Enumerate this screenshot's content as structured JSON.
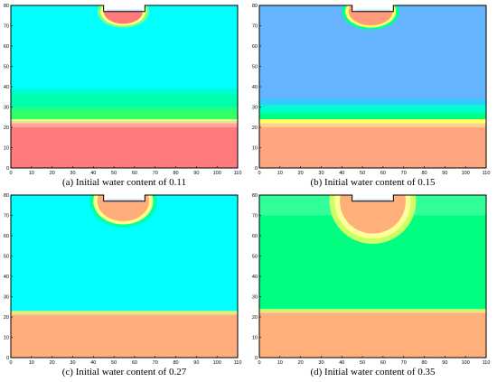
{
  "figure": {
    "panels": [
      {
        "caption": "(a) Initial water content of 0.11",
        "colors": {
          "background": "#00ffff",
          "bands": [
            {
              "from": 0,
              "to": 20,
              "color": "#ff7b7b"
            },
            {
              "from": 20,
              "to": 22,
              "color": "#ffa59a"
            },
            {
              "from": 22,
              "to": 23,
              "color": "#ffd6a0"
            },
            {
              "from": 23,
              "to": 24,
              "color": "#e8ff7a"
            },
            {
              "from": 24,
              "to": 28,
              "color": "#33ff66"
            },
            {
              "from": 28,
              "to": 30,
              "color": "#22ff88"
            },
            {
              "from": 30,
              "to": 36,
              "color": "#00ffaa"
            },
            {
              "from": 36,
              "to": 39,
              "color": "#00ffd0"
            }
          ],
          "plume": [
            "#80ff80",
            "#ffff80",
            "#ff7b7b"
          ]
        }
      },
      {
        "caption": "(b) Initial water content of 0.15",
        "colors": {
          "background": "#66b3ff",
          "bands": [
            {
              "from": 0,
              "to": 20,
              "color": "#ffa57f"
            },
            {
              "from": 20,
              "to": 22,
              "color": "#ffd08a"
            },
            {
              "from": 22,
              "to": 24,
              "color": "#ffff66"
            },
            {
              "from": 24,
              "to": 27,
              "color": "#00ff80"
            },
            {
              "from": 27,
              "to": 31,
              "color": "#00ffcc"
            },
            {
              "from": 31,
              "to": 34,
              "color": "#33ccff"
            }
          ],
          "plume": [
            "#00ff99",
            "#ffff66",
            "#ff9a7a"
          ]
        }
      },
      {
        "caption": "(c) Initial water content of 0.27",
        "colors": {
          "background": "#00ffff",
          "bands": [
            {
              "from": 0,
              "to": 21,
              "color": "#ffad7a"
            },
            {
              "from": 21,
              "to": 22,
              "color": "#ffd68a"
            },
            {
              "from": 22,
              "to": 23,
              "color": "#ccff66"
            }
          ],
          "plume": [
            "#00ffaa",
            "#ffff80",
            "#ffad7a"
          ]
        }
      },
      {
        "caption": "(d) Initial water content of 0.35",
        "colors": {
          "background": "#00ff80",
          "bands": [
            {
              "from": 0,
              "to": 22,
              "color": "#ffb07a"
            },
            {
              "from": 22,
              "to": 23,
              "color": "#ffe08a"
            },
            {
              "from": 23,
              "to": 24,
              "color": "#bfff66"
            },
            {
              "from": 70,
              "to": 80,
              "color": "#33ff99"
            }
          ],
          "plume": [
            "#ccff66",
            "#ffff99",
            "#ffb07a"
          ]
        }
      }
    ]
  },
  "chart_data": [
    {
      "type": "heatmap",
      "title": "(a) Initial water content of 0.11",
      "xlim": [
        0,
        110
      ],
      "ylim": [
        0,
        80
      ],
      "xticks": [
        0,
        10,
        20,
        30,
        40,
        50,
        60,
        70,
        80,
        90,
        100,
        110
      ],
      "yticks": [
        0,
        10,
        20,
        30,
        40,
        50,
        60,
        70,
        80
      ],
      "grid": false,
      "notch": {
        "x": [
          45,
          65
        ],
        "y": [
          77,
          80
        ]
      },
      "plume": {
        "x": [
          42,
          67
        ],
        "y_bottom": 69
      }
    },
    {
      "type": "heatmap",
      "title": "(b) Initial water content of 0.15",
      "xlim": [
        0,
        110
      ],
      "ylim": [
        0,
        80
      ],
      "xticks": [
        0,
        10,
        20,
        30,
        40,
        50,
        60,
        70,
        80,
        90,
        100,
        110
      ],
      "yticks": [
        0,
        10,
        20,
        30,
        40,
        50,
        60,
        70,
        80
      ],
      "grid": false,
      "notch": {
        "x": [
          45,
          65
        ],
        "y": [
          77,
          80
        ]
      },
      "plume": {
        "x": [
          40,
          68
        ],
        "y_bottom": 68
      }
    },
    {
      "type": "heatmap",
      "title": "(c) Initial water content of 0.27",
      "xlim": [
        0,
        110
      ],
      "ylim": [
        0,
        80
      ],
      "xticks": [
        0,
        10,
        20,
        30,
        40,
        50,
        60,
        70,
        80,
        90,
        100,
        110
      ],
      "yticks": [
        0,
        10,
        20,
        30,
        40,
        50,
        60,
        70,
        80
      ],
      "grid": false,
      "notch": {
        "x": [
          45,
          65
        ],
        "y": [
          77,
          80
        ]
      },
      "plume": {
        "x": [
          38,
          71
        ],
        "y_bottom": 64
      }
    },
    {
      "type": "heatmap",
      "title": "(d) Initial water content of 0.35",
      "xlim": [
        0,
        110
      ],
      "ylim": [
        0,
        80
      ],
      "xticks": [
        0,
        10,
        20,
        30,
        40,
        50,
        60,
        70,
        80,
        90,
        100,
        110
      ],
      "yticks": [
        0,
        10,
        20,
        30,
        40,
        50,
        60,
        70,
        80
      ],
      "grid": false,
      "notch": {
        "x": [
          45,
          65
        ],
        "y": [
          77,
          80
        ]
      },
      "plume": {
        "x": [
          34,
          76
        ],
        "y_bottom": 56
      }
    }
  ]
}
